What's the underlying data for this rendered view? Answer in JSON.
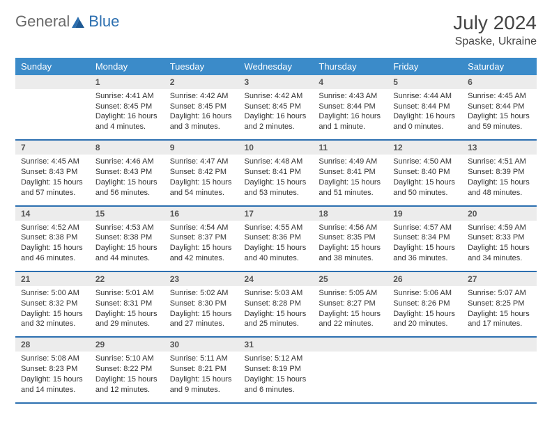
{
  "logo": {
    "general": "General",
    "blue": "Blue",
    "accent_color": "#2c6fb0",
    "gray_color": "#6a6a6a"
  },
  "title": {
    "month": "July 2024",
    "location": "Spaske, Ukraine"
  },
  "colors": {
    "header_bg": "#3b8bc9",
    "header_text": "#ffffff",
    "daynum_bg": "#ececec",
    "daynum_text": "#555555",
    "body_text": "#333333",
    "divider": "#2c6fb0"
  },
  "dow": [
    "Sunday",
    "Monday",
    "Tuesday",
    "Wednesday",
    "Thursday",
    "Friday",
    "Saturday"
  ],
  "weeks": [
    [
      {
        "n": "",
        "lines": [
          "",
          "",
          "",
          ""
        ]
      },
      {
        "n": "1",
        "lines": [
          "Sunrise: 4:41 AM",
          "Sunset: 8:45 PM",
          "Daylight: 16 hours",
          "and 4 minutes."
        ]
      },
      {
        "n": "2",
        "lines": [
          "Sunrise: 4:42 AM",
          "Sunset: 8:45 PM",
          "Daylight: 16 hours",
          "and 3 minutes."
        ]
      },
      {
        "n": "3",
        "lines": [
          "Sunrise: 4:42 AM",
          "Sunset: 8:45 PM",
          "Daylight: 16 hours",
          "and 2 minutes."
        ]
      },
      {
        "n": "4",
        "lines": [
          "Sunrise: 4:43 AM",
          "Sunset: 8:44 PM",
          "Daylight: 16 hours",
          "and 1 minute."
        ]
      },
      {
        "n": "5",
        "lines": [
          "Sunrise: 4:44 AM",
          "Sunset: 8:44 PM",
          "Daylight: 16 hours",
          "and 0 minutes."
        ]
      },
      {
        "n": "6",
        "lines": [
          "Sunrise: 4:45 AM",
          "Sunset: 8:44 PM",
          "Daylight: 15 hours",
          "and 59 minutes."
        ]
      }
    ],
    [
      {
        "n": "7",
        "lines": [
          "Sunrise: 4:45 AM",
          "Sunset: 8:43 PM",
          "Daylight: 15 hours",
          "and 57 minutes."
        ]
      },
      {
        "n": "8",
        "lines": [
          "Sunrise: 4:46 AM",
          "Sunset: 8:43 PM",
          "Daylight: 15 hours",
          "and 56 minutes."
        ]
      },
      {
        "n": "9",
        "lines": [
          "Sunrise: 4:47 AM",
          "Sunset: 8:42 PM",
          "Daylight: 15 hours",
          "and 54 minutes."
        ]
      },
      {
        "n": "10",
        "lines": [
          "Sunrise: 4:48 AM",
          "Sunset: 8:41 PM",
          "Daylight: 15 hours",
          "and 53 minutes."
        ]
      },
      {
        "n": "11",
        "lines": [
          "Sunrise: 4:49 AM",
          "Sunset: 8:41 PM",
          "Daylight: 15 hours",
          "and 51 minutes."
        ]
      },
      {
        "n": "12",
        "lines": [
          "Sunrise: 4:50 AM",
          "Sunset: 8:40 PM",
          "Daylight: 15 hours",
          "and 50 minutes."
        ]
      },
      {
        "n": "13",
        "lines": [
          "Sunrise: 4:51 AM",
          "Sunset: 8:39 PM",
          "Daylight: 15 hours",
          "and 48 minutes."
        ]
      }
    ],
    [
      {
        "n": "14",
        "lines": [
          "Sunrise: 4:52 AM",
          "Sunset: 8:38 PM",
          "Daylight: 15 hours",
          "and 46 minutes."
        ]
      },
      {
        "n": "15",
        "lines": [
          "Sunrise: 4:53 AM",
          "Sunset: 8:38 PM",
          "Daylight: 15 hours",
          "and 44 minutes."
        ]
      },
      {
        "n": "16",
        "lines": [
          "Sunrise: 4:54 AM",
          "Sunset: 8:37 PM",
          "Daylight: 15 hours",
          "and 42 minutes."
        ]
      },
      {
        "n": "17",
        "lines": [
          "Sunrise: 4:55 AM",
          "Sunset: 8:36 PM",
          "Daylight: 15 hours",
          "and 40 minutes."
        ]
      },
      {
        "n": "18",
        "lines": [
          "Sunrise: 4:56 AM",
          "Sunset: 8:35 PM",
          "Daylight: 15 hours",
          "and 38 minutes."
        ]
      },
      {
        "n": "19",
        "lines": [
          "Sunrise: 4:57 AM",
          "Sunset: 8:34 PM",
          "Daylight: 15 hours",
          "and 36 minutes."
        ]
      },
      {
        "n": "20",
        "lines": [
          "Sunrise: 4:59 AM",
          "Sunset: 8:33 PM",
          "Daylight: 15 hours",
          "and 34 minutes."
        ]
      }
    ],
    [
      {
        "n": "21",
        "lines": [
          "Sunrise: 5:00 AM",
          "Sunset: 8:32 PM",
          "Daylight: 15 hours",
          "and 32 minutes."
        ]
      },
      {
        "n": "22",
        "lines": [
          "Sunrise: 5:01 AM",
          "Sunset: 8:31 PM",
          "Daylight: 15 hours",
          "and 29 minutes."
        ]
      },
      {
        "n": "23",
        "lines": [
          "Sunrise: 5:02 AM",
          "Sunset: 8:30 PM",
          "Daylight: 15 hours",
          "and 27 minutes."
        ]
      },
      {
        "n": "24",
        "lines": [
          "Sunrise: 5:03 AM",
          "Sunset: 8:28 PM",
          "Daylight: 15 hours",
          "and 25 minutes."
        ]
      },
      {
        "n": "25",
        "lines": [
          "Sunrise: 5:05 AM",
          "Sunset: 8:27 PM",
          "Daylight: 15 hours",
          "and 22 minutes."
        ]
      },
      {
        "n": "26",
        "lines": [
          "Sunrise: 5:06 AM",
          "Sunset: 8:26 PM",
          "Daylight: 15 hours",
          "and 20 minutes."
        ]
      },
      {
        "n": "27",
        "lines": [
          "Sunrise: 5:07 AM",
          "Sunset: 8:25 PM",
          "Daylight: 15 hours",
          "and 17 minutes."
        ]
      }
    ],
    [
      {
        "n": "28",
        "lines": [
          "Sunrise: 5:08 AM",
          "Sunset: 8:23 PM",
          "Daylight: 15 hours",
          "and 14 minutes."
        ]
      },
      {
        "n": "29",
        "lines": [
          "Sunrise: 5:10 AM",
          "Sunset: 8:22 PM",
          "Daylight: 15 hours",
          "and 12 minutes."
        ]
      },
      {
        "n": "30",
        "lines": [
          "Sunrise: 5:11 AM",
          "Sunset: 8:21 PM",
          "Daylight: 15 hours",
          "and 9 minutes."
        ]
      },
      {
        "n": "31",
        "lines": [
          "Sunrise: 5:12 AM",
          "Sunset: 8:19 PM",
          "Daylight: 15 hours",
          "and 6 minutes."
        ]
      },
      {
        "n": "",
        "lines": [
          "",
          "",
          "",
          ""
        ]
      },
      {
        "n": "",
        "lines": [
          "",
          "",
          "",
          ""
        ]
      },
      {
        "n": "",
        "lines": [
          "",
          "",
          "",
          ""
        ]
      }
    ]
  ]
}
